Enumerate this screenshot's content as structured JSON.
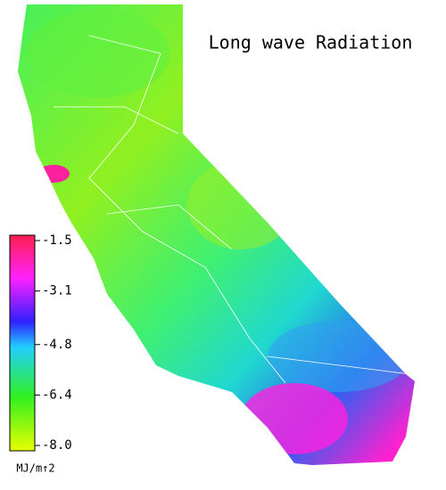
{
  "title": "Long wave Radiation",
  "colorbar": {
    "label": "MJ/m↑2",
    "range": [
      -8,
      -1.5
    ],
    "ticks": [
      -1.5,
      -3.1,
      -4.8,
      -6.4,
      {
        "value": -8,
        "label": "-8.0"
      }
    ]
  }
}
